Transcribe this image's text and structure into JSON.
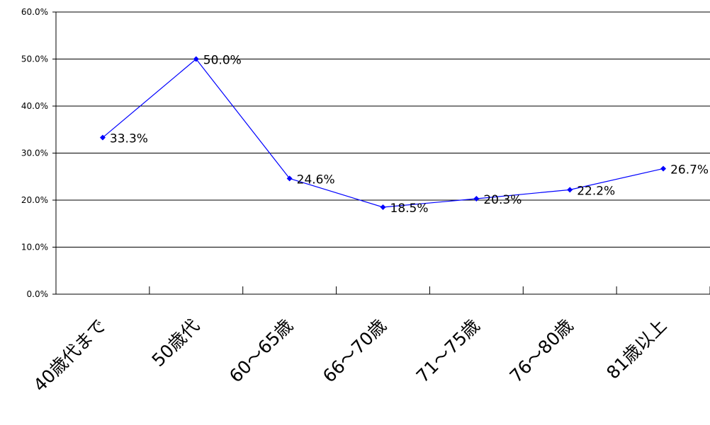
{
  "chart_data": {
    "type": "line",
    "title": "",
    "xlabel": "",
    "ylabel": "",
    "categories": [
      "40歳代まで",
      "50歳代",
      "60～65歳",
      "66～70歳",
      "71～75歳",
      "76～80歳",
      "81歳以上"
    ],
    "series": [
      {
        "values": [
          33.3,
          50.0,
          24.6,
          18.5,
          20.3,
          22.2,
          26.7
        ],
        "labels": [
          "33.3%",
          "50.0%",
          "24.6%",
          "18.5%",
          "20.3%",
          "22.2%",
          "26.7%"
        ],
        "color": "#0000ff"
      }
    ],
    "ylim": [
      0,
      60
    ],
    "yticks": [
      "0.0%",
      "10.0%",
      "20.0%",
      "30.0%",
      "40.0%",
      "50.0%",
      "60.0%"
    ],
    "grid": true,
    "legend": "none"
  }
}
